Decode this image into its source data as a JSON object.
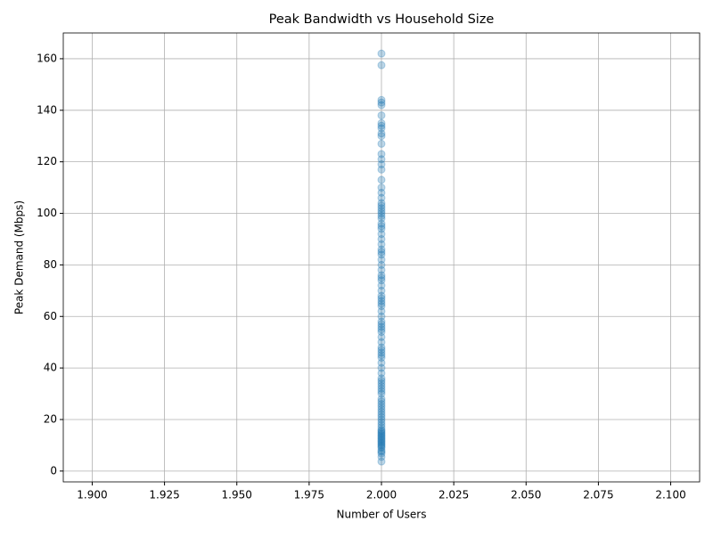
{
  "chart_data": {
    "type": "scatter",
    "title": "Peak Bandwidth vs Household Size",
    "x_label": "Number of Users",
    "y_label": "Peak Demand (Mbps)",
    "color": "#1f77b4",
    "grid": true,
    "xlim": [
      1.89,
      2.11
    ],
    "ylim": [
      -4.2,
      170
    ],
    "xticks": [
      {
        "value": 1.9,
        "label": "1.900"
      },
      {
        "value": 1.925,
        "label": "1.925"
      },
      {
        "value": 1.95,
        "label": "1.950"
      },
      {
        "value": 1.975,
        "label": "1.975"
      },
      {
        "value": 2.0,
        "label": "2.000"
      },
      {
        "value": 2.025,
        "label": "2.025"
      },
      {
        "value": 2.05,
        "label": "2.050"
      },
      {
        "value": 2.075,
        "label": "2.075"
      },
      {
        "value": 2.1,
        "label": "2.100"
      }
    ],
    "yticks": [
      0,
      20,
      40,
      60,
      80,
      100,
      120,
      140,
      160
    ],
    "x": [
      2,
      2,
      2,
      2,
      2,
      2,
      2,
      2,
      2,
      2,
      2,
      2,
      2,
      2,
      2,
      2,
      2,
      2,
      2,
      2,
      2,
      2,
      2,
      2,
      2,
      2,
      2,
      2,
      2,
      2,
      2,
      2,
      2,
      2,
      2,
      2,
      2,
      2,
      2,
      2,
      2,
      2,
      2,
      2,
      2,
      2,
      2,
      2,
      2,
      2,
      2,
      2,
      2,
      2,
      2,
      2,
      2,
      2,
      2,
      2,
      2,
      2,
      2,
      2,
      2,
      2,
      2,
      2,
      2,
      2,
      2,
      2,
      2,
      2,
      2,
      2,
      2,
      2,
      2,
      2,
      2,
      2,
      2,
      2,
      2,
      2,
      2,
      2,
      2,
      2,
      2,
      2,
      2,
      2,
      2,
      2,
      2,
      2,
      2,
      2,
      2,
      2,
      2,
      2,
      2
    ],
    "y": [
      3.7,
      5.5,
      6.8,
      8,
      9,
      10,
      11,
      12,
      13,
      14,
      15,
      16,
      17,
      18,
      19,
      20,
      22,
      24,
      26,
      28,
      30,
      32,
      34,
      36,
      38,
      40,
      42,
      44,
      46,
      48,
      50,
      52,
      54,
      56,
      58,
      60,
      62,
      64,
      66,
      68,
      70,
      72,
      74,
      76,
      78,
      80,
      82,
      84,
      86,
      88,
      90,
      92,
      94,
      96,
      98,
      100,
      101,
      102,
      103,
      104,
      10.5,
      11.5,
      12.5,
      13.5,
      14.5,
      15.5,
      21,
      25,
      27,
      33,
      35,
      45,
      55,
      65,
      75,
      85,
      95,
      99,
      106,
      108,
      110,
      113,
      117,
      119,
      121,
      123,
      127,
      130,
      131,
      133,
      134,
      135,
      138,
      142,
      143,
      144,
      157.5,
      162,
      7.5,
      9.5,
      23,
      31,
      47,
      57,
      67
    ]
  }
}
